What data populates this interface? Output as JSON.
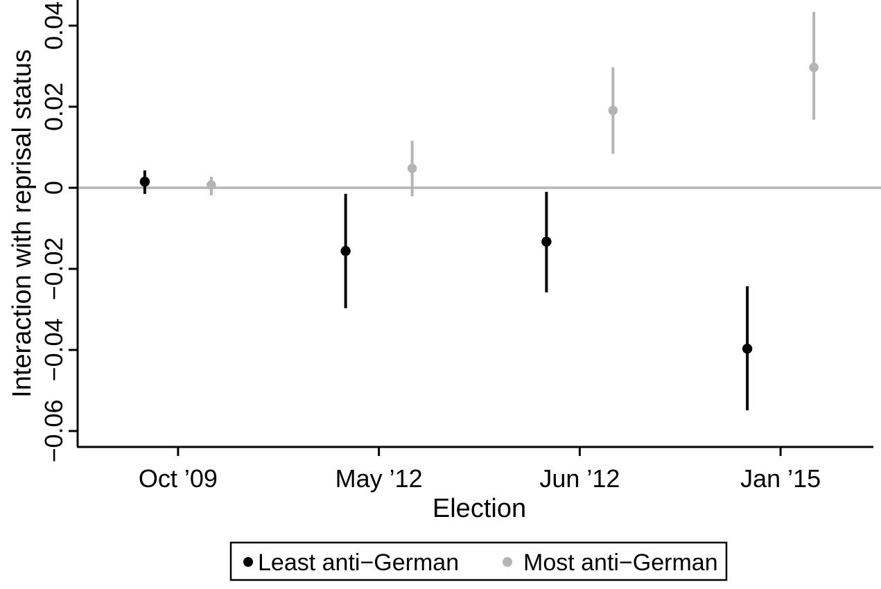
{
  "figure": {
    "title": "",
    "background": "#ffffff"
  },
  "colors": {
    "series_least": "#000000",
    "series_most": "#b4b4b4",
    "zero_line": "#b4b4b4",
    "axis": "#000000",
    "legend_border": "#000000"
  },
  "chart_data": {
    "type": "scatter",
    "subtype": "point-range (coefficient plot with 95% CI whiskers)",
    "title": "",
    "xlabel": "Election",
    "ylabel": "Interaction with reprisal status",
    "categories": [
      "Oct ’09",
      "May ’12",
      "Jun ’12",
      "Jan ’15"
    ],
    "y_ticks": [
      0.04,
      0.02,
      0,
      -0.02,
      -0.04,
      -0.06
    ],
    "y_tick_labels": [
      "0.04",
      "0.02",
      "0",
      "−0.02",
      "−0.04",
      "−0.06"
    ],
    "ylim": [
      -0.0639,
      0.0463
    ],
    "grid": false,
    "zero_reference_line": 0,
    "legend_position": "bottom",
    "series": [
      {
        "name": "Least anti−German",
        "color": "#000000",
        "estimates": [
          0.0015,
          -0.0156,
          -0.0133,
          -0.0397
        ],
        "ci_low": [
          -0.0015,
          -0.0297,
          -0.0258,
          -0.0549
        ],
        "ci_high": [
          0.0043,
          -0.0015,
          -0.001,
          -0.0243
        ]
      },
      {
        "name": "Most anti−German",
        "color": "#b4b4b4",
        "estimates": [
          0.0007,
          0.0048,
          0.0191,
          0.0297
        ],
        "ci_low": [
          -0.0019,
          -0.0021,
          0.0084,
          0.0168
        ],
        "ci_high": [
          0.0027,
          0.0116,
          0.0297,
          0.0434
        ]
      }
    ],
    "legend": {
      "items": [
        {
          "label": "Least anti−German",
          "color": "#000000"
        },
        {
          "label": "Most anti−German",
          "color": "#b4b4b4"
        }
      ]
    }
  }
}
